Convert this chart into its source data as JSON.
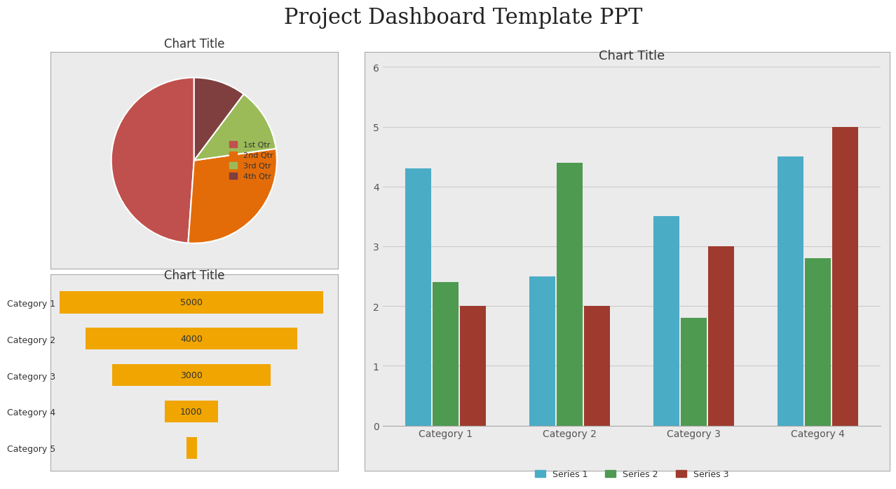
{
  "title": "Project Dashboard Template PPT",
  "title_fontsize": 22,
  "title_fontfamily": "serif",
  "pie": {
    "title": "Chart Title",
    "labels": [
      "1st Qtr",
      "2nd Qtr",
      "3rd Qtr",
      "4th Qtr"
    ],
    "values": [
      4.3,
      2.5,
      1.1,
      0.9
    ],
    "colors": [
      "#c0504d",
      "#e36c09",
      "#9bbb59",
      "#7f3f3f"
    ],
    "bg_color": "#ebebeb"
  },
  "funnel": {
    "title": "Chart Title",
    "categories": [
      "Category 1",
      "Category 2",
      "Category 3",
      "Category 4",
      "Category 5"
    ],
    "values": [
      5000,
      4000,
      3000,
      1000,
      200
    ],
    "bar_color": "#f0a500",
    "text_color": "#333333",
    "bg_color": "#ebebeb"
  },
  "bar": {
    "title": "Chart Title",
    "categories": [
      "Category 1",
      "Category 2",
      "Category 3",
      "Category 4"
    ],
    "series": {
      "Series 1": [
        4.3,
        2.5,
        3.5,
        4.5
      ],
      "Series 2": [
        2.4,
        4.4,
        1.8,
        2.8
      ],
      "Series 3": [
        2.0,
        2.0,
        3.0,
        5.0
      ]
    },
    "colors": {
      "Series 1": "#4bacc6",
      "Series 2": "#4e9a51",
      "Series 3": "#9e3b2e"
    },
    "ylim": [
      0,
      6
    ],
    "yticks": [
      0,
      1,
      2,
      3,
      4,
      5,
      6
    ],
    "bg_color": "#ebebeb"
  }
}
